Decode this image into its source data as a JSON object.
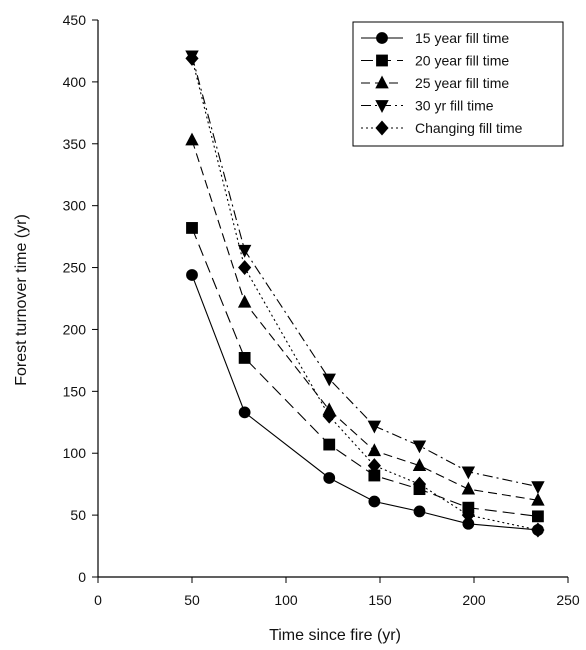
{
  "chart_data": {
    "type": "line",
    "xlabel": "Time since fire (yr)",
    "ylabel": "Forest turnover time (yr)",
    "xlim": [
      0,
      250
    ],
    "ylim": [
      0,
      450
    ],
    "xticks": [
      0,
      50,
      100,
      150,
      200,
      250
    ],
    "yticks": [
      0,
      50,
      100,
      150,
      200,
      250,
      300,
      350,
      400,
      450
    ],
    "grid": false,
    "legend_position": "top-right",
    "x": [
      50,
      78,
      123,
      147,
      171,
      197,
      234
    ],
    "series": [
      {
        "name": "15 year fill time",
        "marker": "circle",
        "dash": "solid",
        "values": [
          244,
          133,
          80,
          61,
          53,
          43,
          38
        ]
      },
      {
        "name": "20 year fill time",
        "marker": "square",
        "dash": "long-dash",
        "values": [
          282,
          177,
          107,
          82,
          71,
          56,
          49
        ]
      },
      {
        "name": "25 year fill time",
        "marker": "triangle-up",
        "dash": "dash",
        "values": [
          353,
          222,
          135,
          102,
          90,
          71,
          62
        ]
      },
      {
        "name": "30 yr fill time",
        "marker": "triangle-down",
        "dash": "dash-dot",
        "values": [
          421,
          264,
          160,
          122,
          106,
          85,
          73
        ]
      },
      {
        "name": "Changing fill time",
        "marker": "diamond",
        "dash": "dotted",
        "values": [
          419,
          250,
          130,
          90,
          75,
          50,
          38
        ]
      }
    ]
  }
}
